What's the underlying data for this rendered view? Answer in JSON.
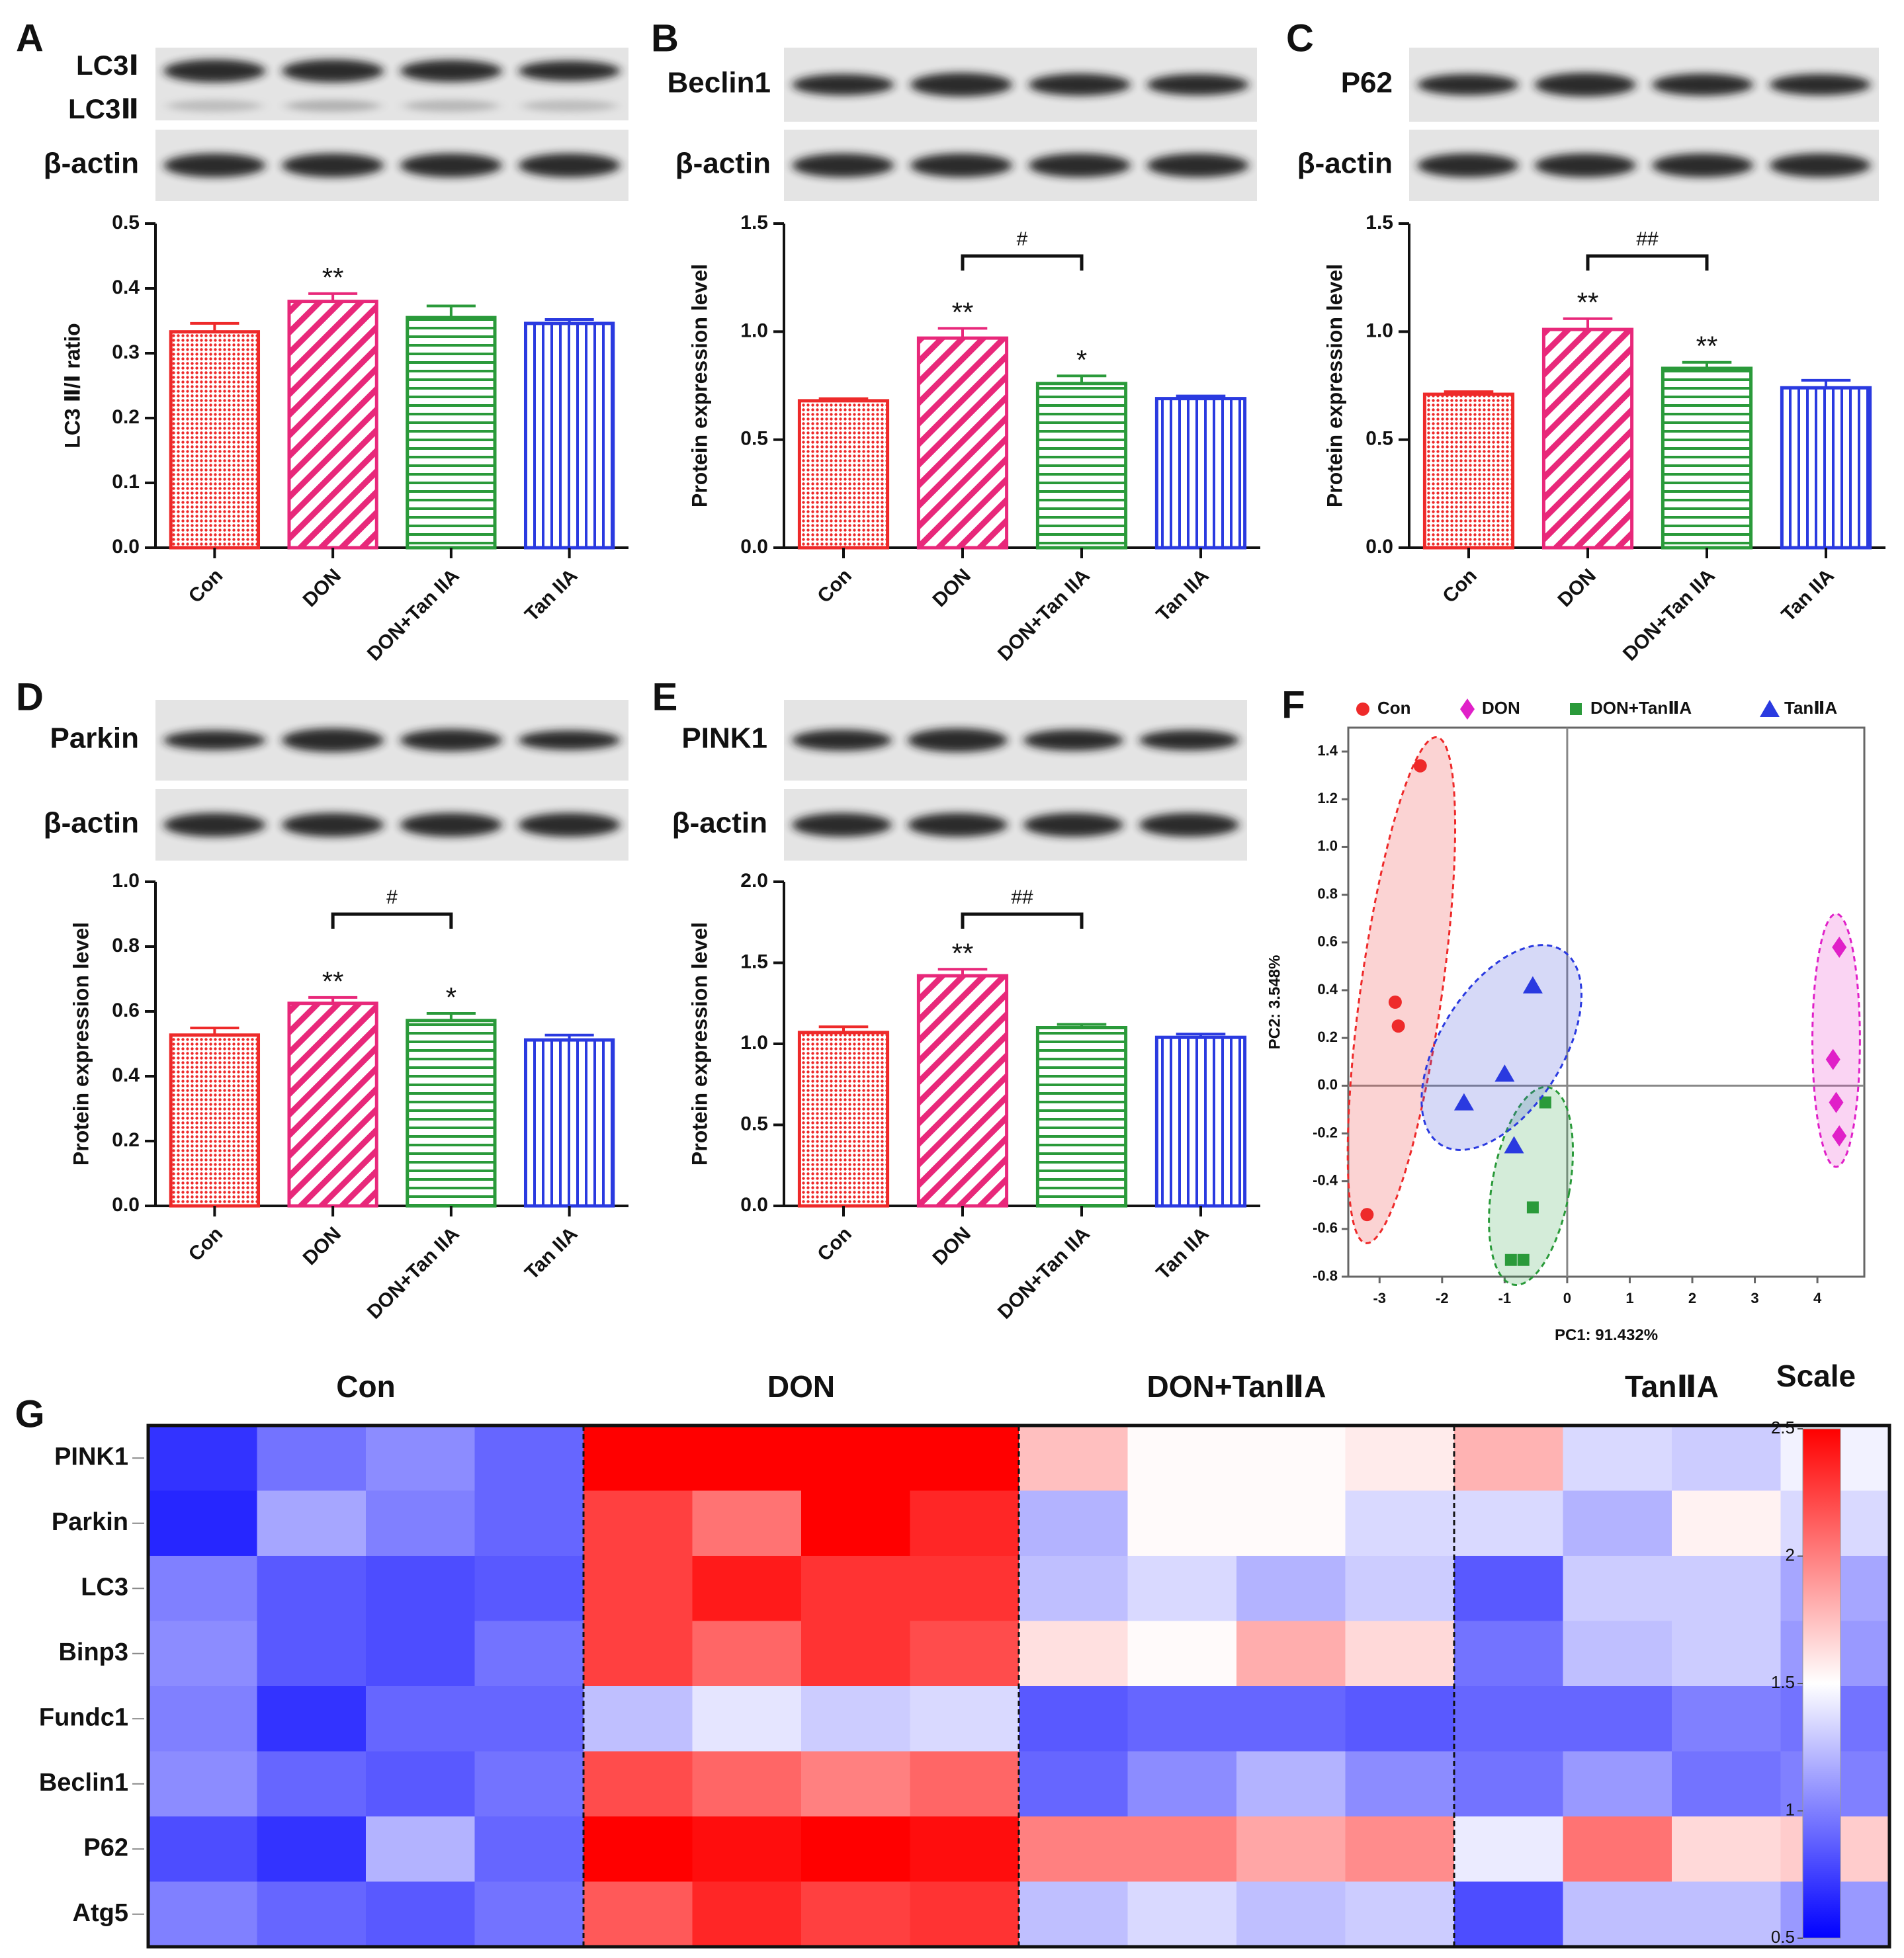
{
  "colors": {
    "con": "#ee2a2a",
    "don": "#e8287a",
    "dontan": "#2a9a3a",
    "tan": "#2a3ae0",
    "axis": "#111111"
  },
  "groups": [
    "Con",
    "DON",
    "DON+Tan IIA",
    "Tan IIA"
  ],
  "panel_letters": [
    "A",
    "B",
    "C",
    "D",
    "E",
    "F",
    "G"
  ],
  "blots": {
    "A": {
      "labels": [
        "LC3Ⅰ",
        "LC3Ⅱ",
        "β-actin"
      ]
    },
    "B": {
      "labels": [
        "Beclin1",
        "β-actin"
      ]
    },
    "C": {
      "labels": [
        "P62",
        "β-actin"
      ]
    },
    "D": {
      "labels": [
        "Parkin",
        "β-actin"
      ]
    },
    "E": {
      "labels": [
        "PINK1",
        "β-actin"
      ]
    }
  },
  "chart_data": [
    {
      "id": "A",
      "type": "bar",
      "ylabel": "LC3 Ⅱ/Ⅰ ratio",
      "ylim": [
        0,
        0.5
      ],
      "yticks": [
        "0.0",
        "0.1",
        "0.2",
        "0.3",
        "0.4",
        "0.5"
      ],
      "categories": [
        "Con",
        "DON",
        "DON+Tan IIA",
        "Tan IIA"
      ],
      "values": [
        0.333,
        0.38,
        0.355,
        0.346
      ],
      "errors": [
        0.013,
        0.012,
        0.018,
        0.006
      ],
      "sig": [
        "",
        "**",
        "",
        ""
      ],
      "bracket": null
    },
    {
      "id": "B",
      "type": "bar",
      "ylabel": "Protein expression level",
      "ylim": [
        0,
        1.5
      ],
      "yticks": [
        "0.0",
        "0.5",
        "1.0",
        "1.5"
      ],
      "categories": [
        "Con",
        "DON",
        "DON+Tan IIA",
        "Tan IIA"
      ],
      "values": [
        0.68,
        0.97,
        0.76,
        0.69
      ],
      "errors": [
        0.01,
        0.045,
        0.035,
        0.012
      ],
      "sig": [
        "",
        "**",
        "*",
        ""
      ],
      "bracket": {
        "from": 1,
        "to": 2,
        "level": 1.35,
        "label": "#"
      }
    },
    {
      "id": "C",
      "type": "bar",
      "ylabel": "Protein expression level",
      "ylim": [
        0,
        1.5
      ],
      "yticks": [
        "0.0",
        "0.5",
        "1.0",
        "1.5"
      ],
      "categories": [
        "Con",
        "DON",
        "DON+Tan IIA",
        "Tan IIA"
      ],
      "values": [
        0.71,
        1.01,
        0.83,
        0.74
      ],
      "errors": [
        0.012,
        0.05,
        0.028,
        0.035
      ],
      "sig": [
        "",
        "**",
        "**",
        ""
      ],
      "bracket": {
        "from": 1,
        "to": 2,
        "level": 1.35,
        "label": "##"
      }
    },
    {
      "id": "D",
      "type": "bar",
      "ylabel": "Protein expression level",
      "ylim": [
        0,
        1.0
      ],
      "yticks": [
        "0.0",
        "0.2",
        "0.4",
        "0.6",
        "0.8",
        "1.0"
      ],
      "categories": [
        "Con",
        "DON",
        "DON+Tan IIA",
        "Tan IIA"
      ],
      "values": [
        0.527,
        0.625,
        0.572,
        0.512
      ],
      "errors": [
        0.022,
        0.018,
        0.022,
        0.015
      ],
      "sig": [
        "",
        "**",
        "*",
        ""
      ],
      "bracket": {
        "from": 1,
        "to": 2,
        "level": 0.9,
        "label": "#"
      }
    },
    {
      "id": "E",
      "type": "bar",
      "ylabel": "Protein expression level",
      "ylim": [
        0,
        2.0
      ],
      "yticks": [
        "0.0",
        "0.5",
        "1.0",
        "1.5",
        "2.0"
      ],
      "categories": [
        "Con",
        "DON",
        "DON+Tan IIA",
        "Tan IIA"
      ],
      "values": [
        1.07,
        1.42,
        1.1,
        1.04
      ],
      "errors": [
        0.035,
        0.04,
        0.02,
        0.02
      ],
      "sig": [
        "",
        "**",
        "",
        ""
      ],
      "bracket": {
        "from": 1,
        "to": 2,
        "level": 1.8,
        "label": "##"
      }
    },
    {
      "id": "F",
      "type": "scatter",
      "xlabel": "PC1: 91.432%",
      "ylabel": "PC2: 3.548%",
      "xlim": [
        -3.5,
        4.75
      ],
      "ylim": [
        -0.8,
        1.5
      ],
      "xticks": [
        "-3",
        "-2",
        "-1",
        "0",
        "1",
        "2",
        "3",
        "4"
      ],
      "yticks": [
        "-0.8",
        "-0.6",
        "-0.4",
        "-0.2",
        "0.0",
        "0.2",
        "0.4",
        "0.6",
        "0.8",
        "1.0",
        "1.2",
        "1.4"
      ],
      "legend": [
        "Con",
        "DON",
        "DON+TanⅡA",
        "TanⅡA"
      ],
      "series": [
        {
          "name": "Con",
          "marker": "circle",
          "x": [
            -2.35,
            -2.75,
            -2.7,
            -3.2
          ],
          "y": [
            1.34,
            0.35,
            0.25,
            -0.54
          ],
          "ellipse": {
            "cx": -2.65,
            "cy": 0.4,
            "rx": 0.65,
            "ry": 1.07
          }
        },
        {
          "name": "DON",
          "marker": "diamond",
          "x": [
            4.35,
            4.25,
            4.3,
            4.35
          ],
          "y": [
            0.58,
            0.11,
            -0.07,
            -0.21
          ],
          "ellipse": {
            "cx": 4.3,
            "cy": 0.19,
            "rx": 0.38,
            "ry": 0.53
          }
        },
        {
          "name": "DON+TanⅡA",
          "marker": "square",
          "x": [
            -0.35,
            -0.55,
            -0.9,
            -0.7
          ],
          "y": [
            -0.07,
            -0.51,
            -0.73,
            -0.73
          ],
          "ellipse": {
            "cx": -0.58,
            "cy": -0.42,
            "rx": 0.62,
            "ry": 0.42
          }
        },
        {
          "name": "TanⅡA",
          "marker": "triangle",
          "x": [
            -0.55,
            -1.65,
            -1.0,
            -0.85
          ],
          "y": [
            0.42,
            -0.07,
            0.05,
            -0.25
          ],
          "ellipse": {
            "cx": -1.05,
            "cy": 0.16,
            "rx": 0.98,
            "ry": 0.48
          }
        }
      ]
    },
    {
      "id": "G",
      "type": "heatmap",
      "title": "Scale",
      "column_groups": [
        "Con",
        "DON",
        "DON+TanⅡA",
        "TanⅡA"
      ],
      "rows": [
        "PINK1",
        "Parkin",
        "LC3",
        "Binp3",
        "Fundc1",
        "Beclin1",
        "P62",
        "Atg5"
      ],
      "scale": [
        0.5,
        2.5
      ],
      "scale_ticks": [
        "2.5",
        "2",
        "1.5",
        "1",
        "0.5"
      ],
      "values": [
        [
          0.7,
          0.95,
          1.05,
          0.9,
          2.5,
          2.5,
          2.5,
          2.5,
          1.75,
          1.52,
          1.52,
          1.58,
          1.8,
          1.35,
          1.3,
          1.45
        ],
        [
          0.65,
          1.15,
          1.0,
          0.9,
          2.25,
          2.05,
          2.5,
          2.35,
          1.2,
          1.52,
          1.52,
          1.35,
          1.35,
          1.2,
          1.55,
          1.35
        ],
        [
          1.0,
          0.85,
          0.8,
          0.85,
          2.25,
          2.4,
          2.3,
          2.3,
          1.25,
          1.35,
          1.2,
          1.3,
          0.85,
          1.3,
          1.3,
          1.15
        ],
        [
          1.05,
          0.85,
          0.8,
          0.95,
          2.25,
          2.1,
          2.3,
          2.2,
          1.62,
          1.52,
          1.82,
          1.65,
          0.95,
          1.25,
          1.3,
          1.1
        ],
        [
          1.0,
          0.7,
          0.9,
          0.9,
          1.25,
          1.4,
          1.3,
          1.35,
          0.85,
          0.9,
          0.9,
          0.85,
          0.9,
          0.9,
          1.0,
          0.95
        ],
        [
          1.05,
          0.9,
          0.85,
          0.95,
          2.2,
          2.1,
          2.0,
          2.1,
          0.9,
          1.05,
          1.2,
          1.05,
          0.95,
          1.1,
          0.95,
          1.0
        ],
        [
          0.8,
          0.7,
          1.2,
          0.9,
          2.5,
          2.45,
          2.5,
          2.45,
          2.0,
          2.0,
          1.85,
          1.95,
          1.42,
          2.05,
          1.65,
          1.7
        ],
        [
          1.0,
          0.9,
          0.85,
          0.95,
          2.15,
          2.35,
          2.25,
          2.3,
          1.25,
          1.35,
          1.25,
          1.3,
          0.8,
          1.25,
          1.25,
          1.1
        ]
      ]
    }
  ]
}
